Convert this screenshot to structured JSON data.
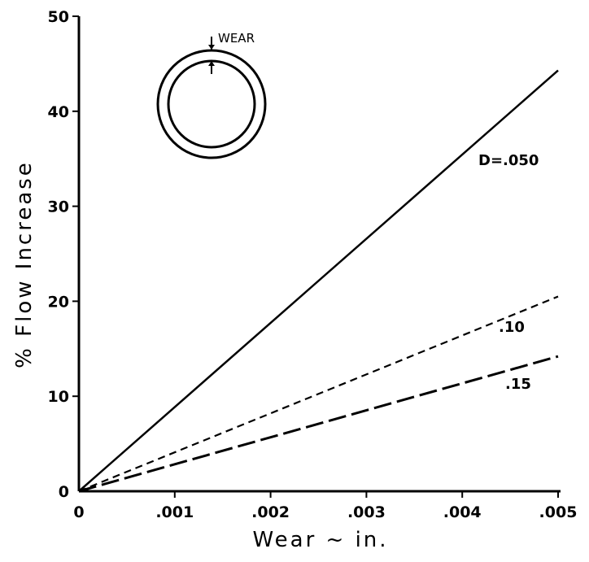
{
  "chart_data": {
    "type": "line",
    "title": "",
    "xlabel": "Wear ~ in.",
    "ylabel": "% Flow Increase",
    "xlim": [
      0,
      0.005
    ],
    "ylim": [
      0,
      50
    ],
    "x_ticks": [
      0,
      0.001,
      0.002,
      0.003,
      0.004,
      0.005
    ],
    "x_tick_labels": [
      "0",
      ".001",
      ".002",
      ".003",
      ".004",
      ".005"
    ],
    "y_ticks": [
      0,
      10,
      20,
      30,
      40,
      50
    ],
    "y_tick_labels": [
      "0",
      "10",
      "20",
      "30",
      "40",
      "50"
    ],
    "grid": false,
    "legend": "none",
    "series": [
      {
        "label": "D=.050",
        "style": "solid",
        "x": [
          0,
          0.005
        ],
        "y": [
          0,
          44.3
        ]
      },
      {
        "label": ".10",
        "style": "dashed",
        "x": [
          0,
          0.005
        ],
        "y": [
          0,
          20.5
        ]
      },
      {
        "label": ".15",
        "style": "longdash",
        "x": [
          0,
          0.005
        ],
        "y": [
          0,
          14.2
        ]
      }
    ],
    "inset": {
      "label": "WEAR",
      "description": "ring cross-section"
    }
  }
}
